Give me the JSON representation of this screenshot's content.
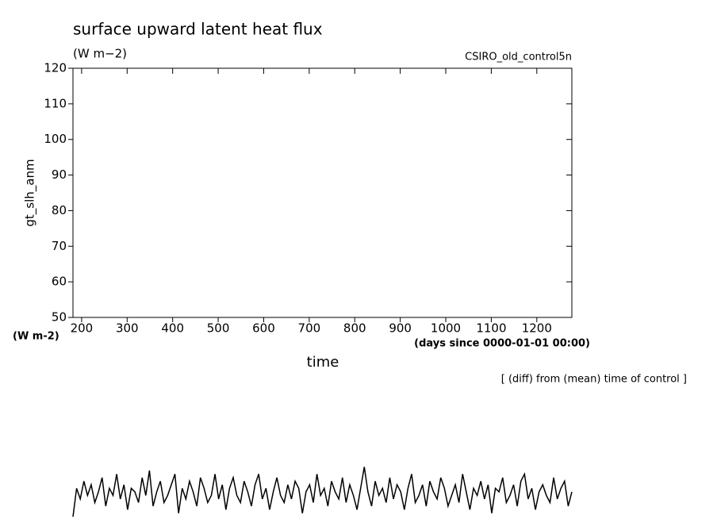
{
  "chart_data": {
    "type": "line",
    "title": "surface upward latent heat flux",
    "subtitle": "(W m−2)",
    "run_label": "CSIRO_old_control5n",
    "ylabel": "gt_slh_anm",
    "yunits": "(W m-2)",
    "xlabel": "time",
    "xunits": "(days since 0000-01-01 00:00)",
    "note": "[ (diff) from (mean) time of control ]",
    "xlim": [
      181,
      1277
    ],
    "xticks": [
      200,
      300,
      400,
      500,
      600,
      700,
      800,
      900,
      1000,
      1100,
      1200
    ],
    "ylim": [
      50,
      120
    ],
    "yticks": [
      50,
      60,
      70,
      80,
      90,
      100,
      110,
      120
    ],
    "x": [
      181,
      189,
      197,
      205,
      213,
      221,
      229,
      237,
      245,
      253,
      261,
      269,
      277,
      285,
      293,
      301,
      309,
      317,
      325,
      333,
      341,
      349,
      357,
      365,
      373,
      381,
      389,
      397,
      405,
      413,
      421,
      429,
      437,
      445,
      453,
      461,
      469,
      477,
      485,
      493,
      501,
      509,
      517,
      525,
      533,
      541,
      549,
      557,
      565,
      573,
      581,
      589,
      597,
      605,
      613,
      621,
      629,
      637,
      645,
      653,
      661,
      669,
      677,
      685,
      693,
      701,
      709,
      717,
      725,
      733,
      741,
      749,
      757,
      765,
      773,
      781,
      789,
      797,
      805,
      813,
      821,
      829,
      837,
      845,
      853,
      861,
      869,
      877,
      885,
      893,
      901,
      909,
      917,
      925,
      933,
      941,
      949,
      957,
      965,
      973,
      981,
      989,
      997,
      1005,
      1013,
      1021,
      1029,
      1037,
      1045,
      1053,
      1061,
      1069,
      1077,
      1085,
      1093,
      1101,
      1109,
      1117,
      1125,
      1133,
      1141,
      1149,
      1157,
      1165,
      1173,
      1181,
      1189,
      1197,
      1205,
      1213,
      1221,
      1229,
      1237,
      1245,
      1253,
      1261,
      1269,
      1277
    ],
    "series": [
      {
        "color": "#000000",
        "values": [
          -6,
          2,
          -1,
          4,
          0,
          3,
          -2,
          1,
          5,
          -3,
          2,
          0,
          6,
          -1,
          3,
          -4,
          2,
          1,
          -2,
          5,
          0,
          7,
          -3,
          1,
          4,
          -2,
          0,
          3,
          6,
          -5,
          2,
          -1,
          4,
          1,
          -3,
          5,
          2,
          -2,
          0,
          6,
          -1,
          3,
          -4,
          2,
          5,
          0,
          -2,
          4,
          1,
          -3,
          3,
          6,
          -1,
          2,
          -4,
          1,
          5,
          0,
          -2,
          3,
          -1,
          4,
          2,
          -5,
          1,
          3,
          -2,
          6,
          0,
          2,
          -3,
          4,
          1,
          -1,
          5,
          -2,
          3,
          0,
          -4,
          2,
          8,
          1,
          -3,
          4,
          0,
          2,
          -2,
          5,
          -1,
          3,
          1,
          -4,
          2,
          6,
          -2,
          0,
          3,
          -3,
          4,
          1,
          -1,
          5,
          2,
          -3,
          0,
          3,
          -2,
          6,
          1,
          -4,
          2,
          0,
          4,
          -1,
          3,
          -5,
          2,
          1,
          5,
          -2,
          0,
          3,
          -3,
          4,
          6,
          -1,
          2,
          -4,
          1,
          3,
          0,
          -2,
          5,
          -1,
          2,
          4,
          -3,
          1
        ]
      }
    ]
  }
}
